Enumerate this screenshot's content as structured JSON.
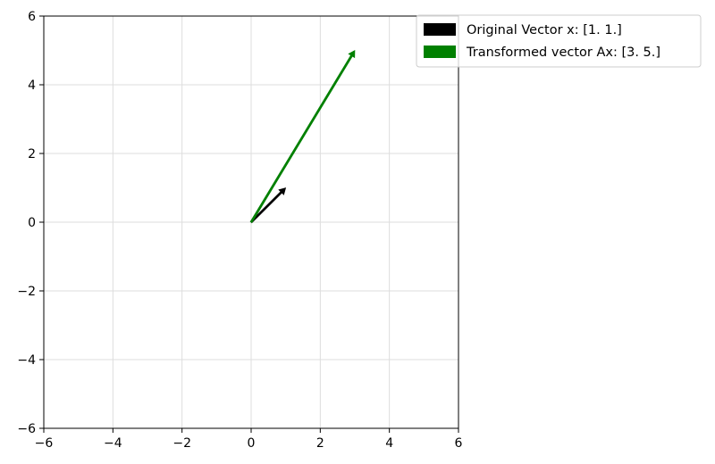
{
  "chart_data": {
    "type": "quiver",
    "title": "",
    "xlabel": "",
    "ylabel": "",
    "xlim": [
      -6,
      6
    ],
    "ylim": [
      -6,
      6
    ],
    "xticks": [
      -6,
      -4,
      -2,
      0,
      2,
      4,
      6
    ],
    "yticks": [
      -6,
      -4,
      -2,
      0,
      2,
      4,
      6
    ],
    "xtick_labels": [
      "−6",
      "−4",
      "−2",
      "0",
      "2",
      "4",
      "6"
    ],
    "ytick_labels": [
      "−6",
      "−4",
      "−2",
      "0",
      "2",
      "4",
      "6"
    ],
    "grid": true,
    "legend_position": "outside upper-right",
    "series": [
      {
        "name": "Original Vector x: [1. 1.]",
        "origin": [
          0,
          0
        ],
        "vector": [
          1,
          1
        ],
        "color": "#000000"
      },
      {
        "name": "Transformed vector Ax: [3. 5.]",
        "origin": [
          0,
          0
        ],
        "vector": [
          3,
          5
        ],
        "color": "#008000"
      }
    ]
  }
}
